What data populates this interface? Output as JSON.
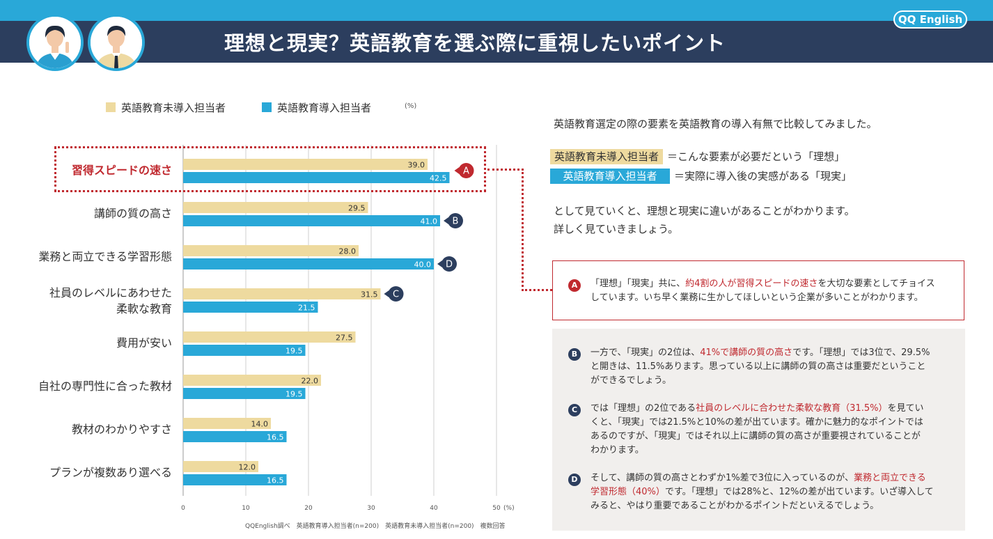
{
  "header": {
    "title": "理想と現実？英語教育を選ぶ際に重視したいポイント",
    "logo": "QQ English"
  },
  "legend": {
    "series1": "英語教育未導入担当者",
    "series2": "英語教育導入担当者",
    "unit": "(%)"
  },
  "colors": {
    "series1": "#eeda9f",
    "series2": "#29a8d8",
    "accent": "#c0292f",
    "navy": "#2c3e5e",
    "header": "#2c3e5e",
    "topbar": "#29a8d8"
  },
  "chart_data": {
    "type": "bar",
    "orientation": "horizontal",
    "categories": [
      [
        "習得スピードの速さ"
      ],
      [
        "講師の質の高さ"
      ],
      [
        "業務と両立できる学習形態"
      ],
      [
        "社員のレベルにあわせた",
        "柔軟な教育"
      ],
      [
        "費用が安い"
      ],
      [
        "自社の専門性に合った教材"
      ],
      [
        "教材のわかりやすさ"
      ],
      [
        "プランが複数あり選べる"
      ]
    ],
    "series": [
      {
        "name": "英語教育未導入担当者",
        "values": [
          39.0,
          29.5,
          28.0,
          31.5,
          27.5,
          22.0,
          14.0,
          12.0
        ]
      },
      {
        "name": "英語教育導入担当者",
        "values": [
          42.5,
          41.0,
          40.0,
          21.5,
          19.5,
          19.5,
          16.5,
          16.5
        ]
      }
    ],
    "value_labels": [
      [
        "39.0",
        "29.5",
        "28.0",
        "31.5",
        "27.5",
        "22.0",
        "14.0",
        "12.0"
      ],
      [
        "42.5",
        "41.0",
        "40.0",
        "21.5",
        "19.5",
        "19.5",
        "16.5",
        "16.5"
      ]
    ],
    "xlim": [
      0,
      50
    ],
    "xticks": [
      "0",
      "10",
      "20",
      "30",
      "40",
      "50"
    ],
    "xunit": "(%)",
    "highlighted_category": "習得スピードの速さ",
    "markers": [
      {
        "label": "A",
        "category_index": 0,
        "series_index": 1,
        "style": "red"
      },
      {
        "label": "B",
        "category_index": 1,
        "series_index": 1,
        "style": "navy"
      },
      {
        "label": "D",
        "category_index": 2,
        "series_index": 1,
        "style": "navy"
      },
      {
        "label": "C",
        "category_index": 3,
        "series_index": 0,
        "style": "navy"
      }
    ]
  },
  "source": "QQEnglish調べ　英語教育導入担当者(n=200)　英語教育未導入担当者(n=200)　複数回答",
  "right": {
    "intro": "英語教育選定の際の要素を英語教育の導入有無で比較してみました。",
    "key1_tag": "英語教育未導入担当者",
    "key1_text": "＝こんな要素が必要だという「理想」",
    "key2_tag": "英語教育導入担当者",
    "key2_text": "＝実際に導入後の実感がある「現実」",
    "para_line1": "として見ていくと、理想と現実に違いがあることがわかります。",
    "para_line2": "詳しく見ていきましょう。",
    "noteA": {
      "badge": "A",
      "l1a": "「理想」「現実」共に、",
      "l1b": "約4割の人が習得スピードの速さ",
      "l1c": "を大切な要素としてチョイス",
      "l2": "しています。いち早く業務に生かしてほしいという企業が多いことがわかります。"
    },
    "noteB": {
      "badge": "B",
      "l1a": "一方で、「現実」の2位は、",
      "l1b": "41%で講師の質の高さ",
      "l1c": "です。「理想」では3位で、29.5%",
      "l2": "と開きは、11.5%あります。思っている以上に講師の質の高さは重要だということ",
      "l3": "ができるでしょう。"
    },
    "noteC": {
      "badge": "C",
      "l1a": "では「理想」の2位である",
      "l1b": "社員のレベルに合わせた柔軟な教育（31.5%）",
      "l1c": "を見てい",
      "l2": "くと、「現実」では21.5%と10%の差が出ています。確かに魅力的なポイントでは",
      "l3": "あるのですが、「現実」ではそれ以上に講師の質の高さが重要視されていることが",
      "l4": "わかります。"
    },
    "noteD": {
      "badge": "D",
      "l1a": "そして、講師の質の高さとわずか1%差で3位に入っているのが、",
      "l1b": "業務と両立できる",
      "l2a": "学習形態（40%）",
      "l2b": "です。「理想」では28%と、12%の差が出ています。いざ導入して",
      "l3": "みると、やはり重要であることがわかるポイントだといえるでしょう。"
    }
  }
}
